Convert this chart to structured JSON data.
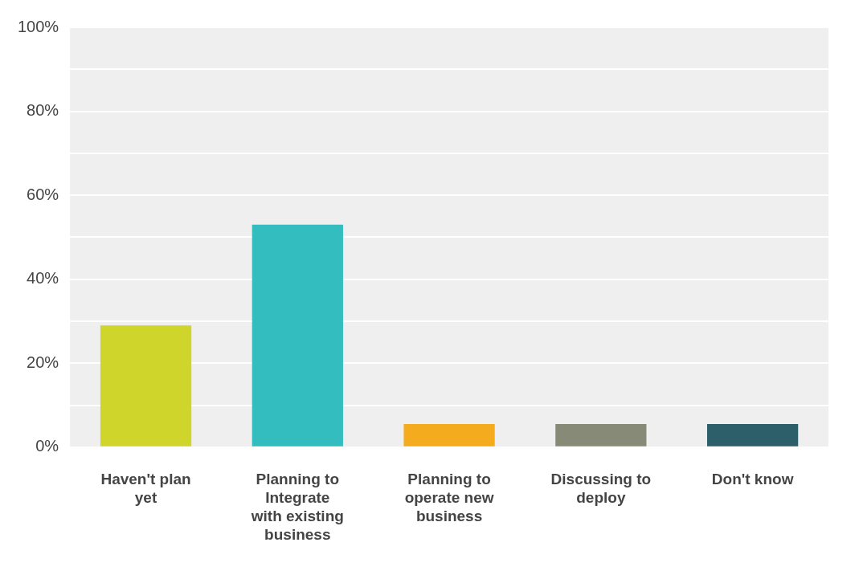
{
  "chart_data": {
    "type": "bar",
    "categories": [
      "Haven't plan yet",
      "Planning to Integrate with existing business",
      "Planning to operate new business",
      "Discussing to deploy",
      "Don't know"
    ],
    "values": [
      29,
      53,
      5.5,
      5.5,
      5.5
    ],
    "colors": [
      "#cfd52a",
      "#33bdbf",
      "#f4ab1e",
      "#888a78",
      "#2d5f6b"
    ],
    "ylim": [
      0,
      100
    ],
    "yticks": [
      {
        "value": 0,
        "label": "0%"
      },
      {
        "value": 10,
        "label": null
      },
      {
        "value": 20,
        "label": "20%"
      },
      {
        "value": 30,
        "label": null
      },
      {
        "value": 40,
        "label": "40%"
      },
      {
        "value": 50,
        "label": null
      },
      {
        "value": 60,
        "label": "60%"
      },
      {
        "value": 70,
        "label": null
      },
      {
        "value": 80,
        "label": "80%"
      },
      {
        "value": 90,
        "label": null
      },
      {
        "value": 100,
        "label": "100%"
      }
    ],
    "grid": "y",
    "legend": false
  }
}
